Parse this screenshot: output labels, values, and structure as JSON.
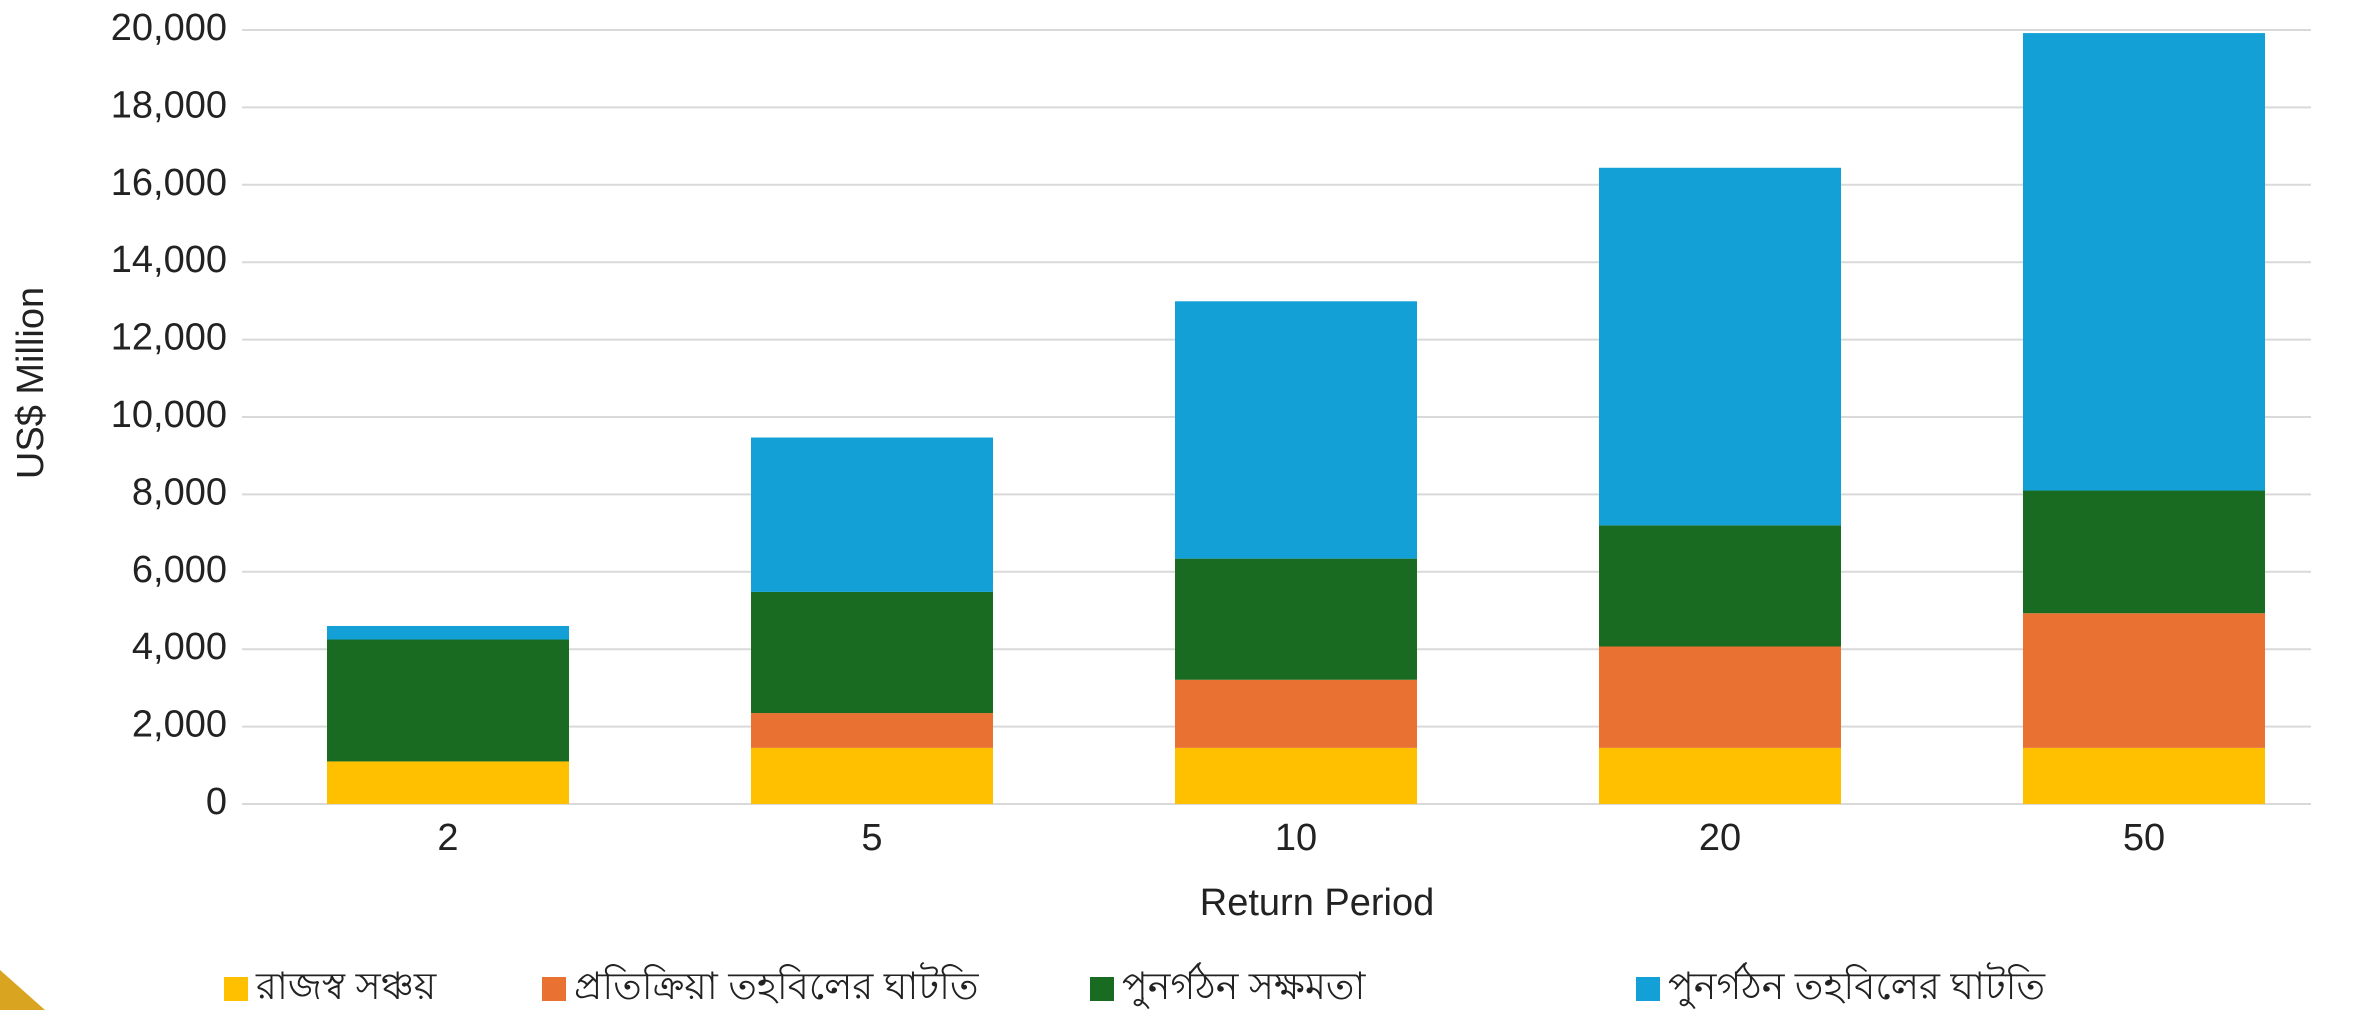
{
  "chart_data": {
    "type": "stacked_bar",
    "x_label": "Return Period",
    "y_label": "US$ Million",
    "categories": [
      "2",
      "5",
      "10",
      "20",
      "50"
    ],
    "series": [
      {
        "name": "রাজস্ব সঞ্চয়",
        "color": "#ffc000",
        "values": [
          1100,
          1450,
          1450,
          1450,
          1450
        ]
      },
      {
        "name": "প্রতিক্রিয়া তহবিলের ঘাটতি",
        "color": "#e97132",
        "values": [
          0,
          900,
          1760,
          2620,
          3480
        ]
      },
      {
        "name": "পুনর্গঠন সক্ষমতা",
        "color": "#1a6b22",
        "values": [
          3150,
          3130,
          3130,
          3130,
          3170
        ]
      },
      {
        "name": "পুনর্গঠন তহবিলের ঘাটতি",
        "color": "#12a0d7",
        "values": [
          350,
          3990,
          6650,
          9240,
          11820
        ]
      }
    ],
    "ylim": [
      0,
      20000
    ],
    "yticks": [
      0,
      {
        "value": 2000,
        "label": "2,000"
      },
      {
        "value": 4000,
        "label": "4,000"
      },
      {
        "value": 6000,
        "label": "6,000"
      },
      {
        "value": 8000,
        "label": "8,000"
      },
      {
        "value": 10000,
        "label": "10,000"
      },
      {
        "value": 12000,
        "label": "12,000"
      },
      {
        "value": 14000,
        "label": "14,000"
      },
      {
        "value": 16000,
        "label": "16,000"
      },
      {
        "value": 18000,
        "label": "18,000"
      },
      {
        "value": 20000,
        "label": "20,000"
      }
    ],
    "grid": true,
    "legend": "bottom"
  }
}
